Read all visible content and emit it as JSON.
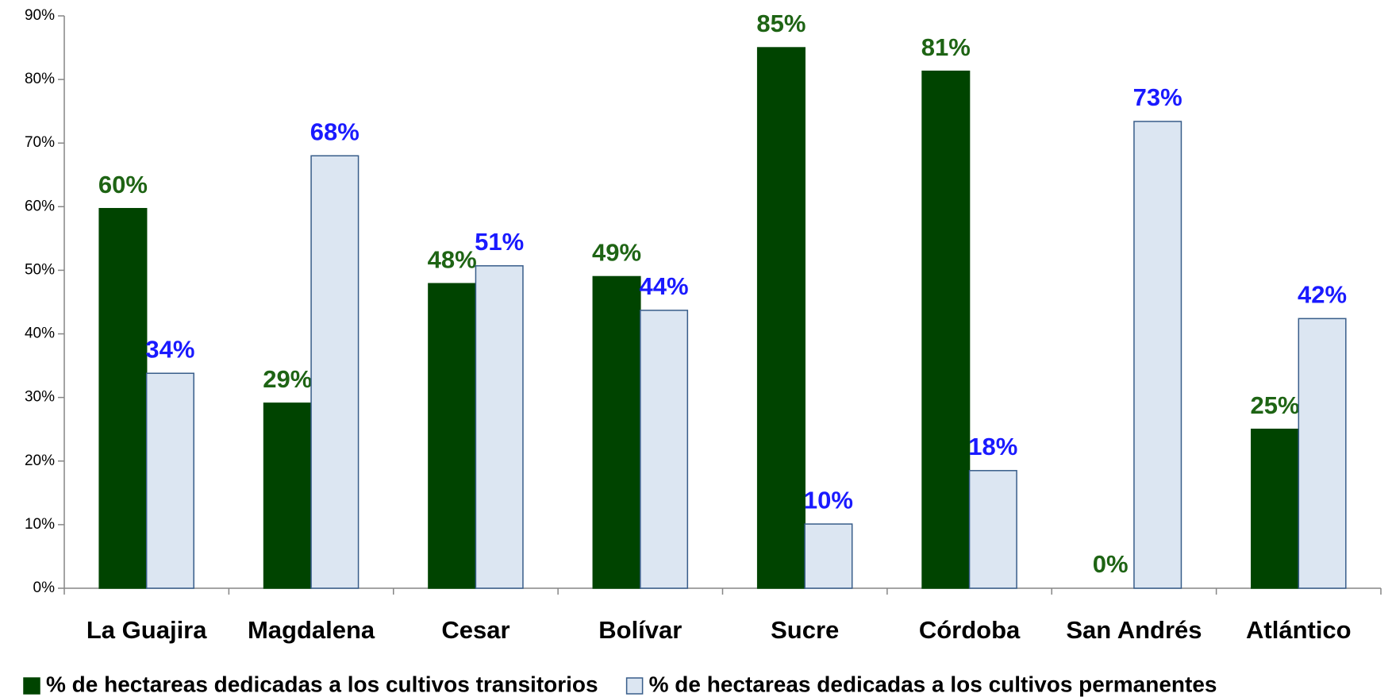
{
  "chart_data": {
    "type": "bar",
    "categories": [
      "La Guajira",
      "Magdalena",
      "Cesar",
      "Bolívar",
      "Sucre",
      "Córdoba",
      "San Andrés",
      "Atlántico"
    ],
    "series": [
      {
        "name": "% de hectareas dedicadas a los cultivos transitorios",
        "color": "#004400",
        "label_color": "#1e6414",
        "values": [
          59.7,
          29.1,
          47.9,
          49.0,
          85.0,
          81.3,
          0,
          25.0
        ],
        "value_labels": [
          "60%",
          "29%",
          "48%",
          "49%",
          "85%",
          "81%",
          "0%",
          "25%"
        ]
      },
      {
        "name": "% de hectareas dedicadas a los cultivos permanentes",
        "color": "#dce6f2",
        "label_color": "#1a1aff",
        "values": [
          33.8,
          68.0,
          50.7,
          43.7,
          10.1,
          18.5,
          73.4,
          42.4
        ],
        "value_labels": [
          "34%",
          "68%",
          "51%",
          "44%",
          "10%",
          "18%",
          "73%",
          "42%"
        ]
      }
    ],
    "ylim": [
      0,
      90
    ],
    "yticks": [
      {
        "value": 0,
        "label": "0%"
      },
      {
        "value": 10,
        "label": "10%"
      },
      {
        "value": 20,
        "label": "20%"
      },
      {
        "value": 30,
        "label": "30%"
      },
      {
        "value": 40,
        "label": "40%"
      },
      {
        "value": 50,
        "label": "50%"
      },
      {
        "value": 60,
        "label": "60%"
      },
      {
        "value": 70,
        "label": "70%"
      },
      {
        "value": 80,
        "label": "80%"
      },
      {
        "value": 90,
        "label": "90%"
      }
    ],
    "grid": false,
    "legend": "bottom"
  }
}
